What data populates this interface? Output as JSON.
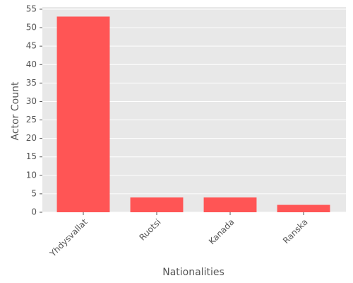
{
  "chart_data": {
    "type": "bar",
    "x_label": "Nationalities",
    "y_label": "Actor Count",
    "categories": [
      "Yhdysvallat",
      "Ruotsi",
      "Kanada",
      "Ranska"
    ],
    "values": [
      53,
      4,
      4,
      2
    ],
    "color": "#ff5555",
    "ylim": [
      0,
      55
    ],
    "yticks": [
      0,
      5,
      10,
      15,
      20,
      25,
      30,
      35,
      40,
      45,
      50,
      55
    ],
    "grid": true
  }
}
